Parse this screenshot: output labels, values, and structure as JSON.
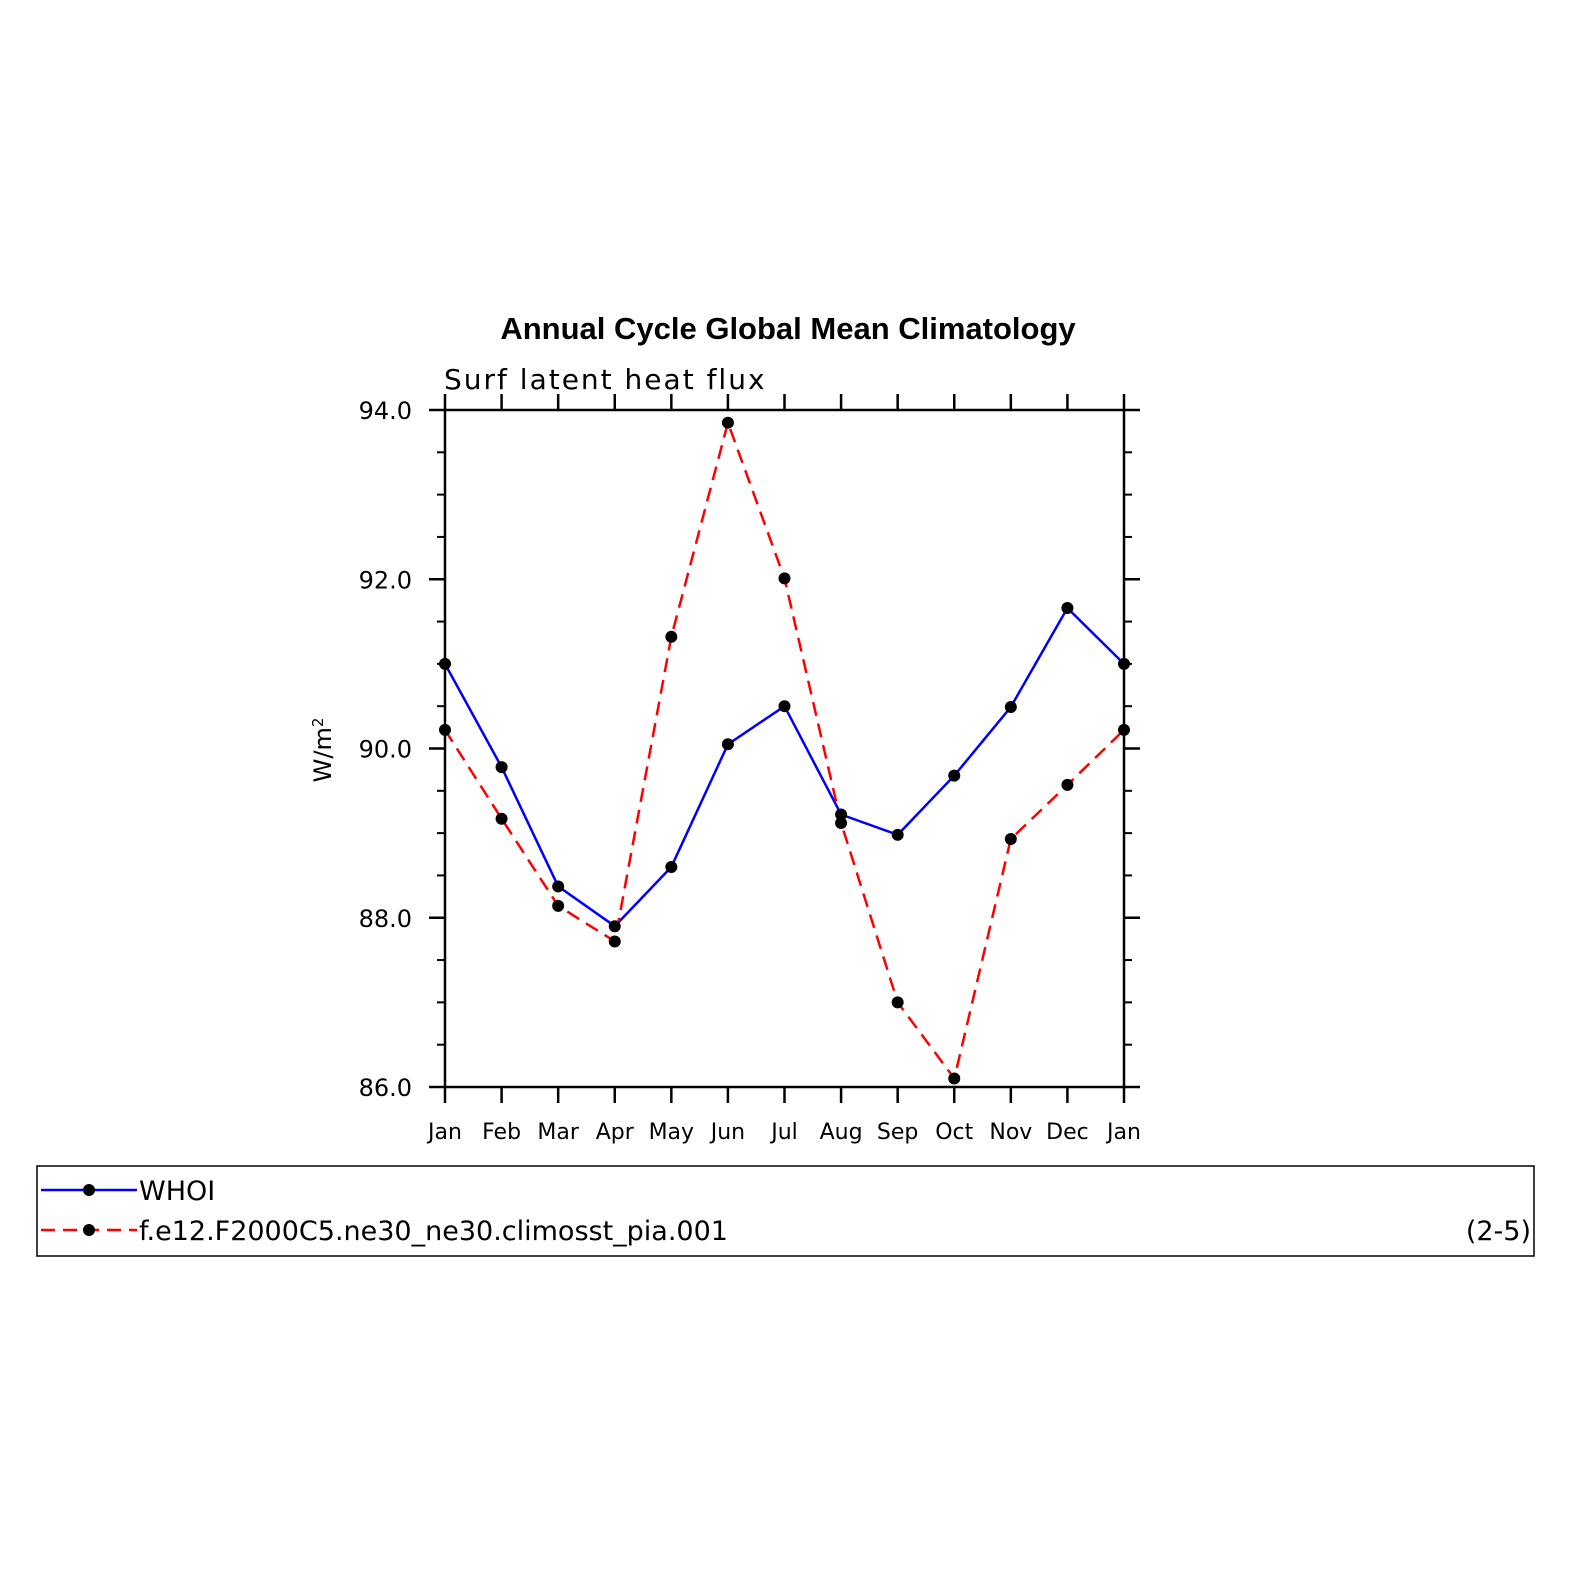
{
  "chart_data": {
    "type": "line",
    "title": "Annual Cycle Global Mean Climatology",
    "subtitle": "Surf latent heat flux",
    "ylabel": "W/m",
    "ylabel_superscript": "2",
    "xlabel": "",
    "categories": [
      "Jan",
      "Feb",
      "Mar",
      "Apr",
      "May",
      "Jun",
      "Jul",
      "Aug",
      "Sep",
      "Oct",
      "Nov",
      "Dec",
      "Jan"
    ],
    "ylim": [
      86.0,
      94.0
    ],
    "yticks": [
      86.0,
      88.0,
      90.0,
      92.0,
      94.0
    ],
    "ytick_labels": [
      "86.0",
      "88.0",
      "90.0",
      "92.0",
      "94.0"
    ],
    "grid": false,
    "legend_position": "bottom",
    "panel_label": "(2-5)",
    "series": [
      {
        "name": "WHOI",
        "color": "#0000ff",
        "dash": "solid",
        "values": [
          91.0,
          89.78,
          88.37,
          87.9,
          88.6,
          90.05,
          90.5,
          89.22,
          88.98,
          89.68,
          90.49,
          91.66,
          91.0
        ]
      },
      {
        "name": "f.e12.F2000C5.ne30_ne30.climosst_pia.001",
        "color": "#ff0000",
        "dash": "dashed",
        "values": [
          90.22,
          89.17,
          88.14,
          87.72,
          91.32,
          93.85,
          92.01,
          89.12,
          87.0,
          86.1,
          88.93,
          89.57,
          90.22
        ]
      }
    ]
  }
}
